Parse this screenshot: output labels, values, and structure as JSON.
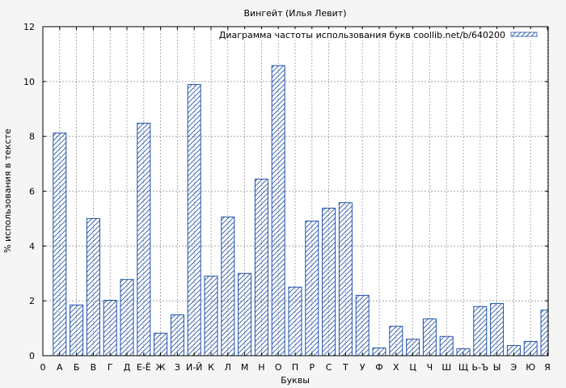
{
  "chart_data": {
    "type": "bar",
    "title": "Вингейт (Илья Левит)",
    "xlabel": "Буквы",
    "ylabel": "% использования в тексте",
    "ylim": [
      0,
      12
    ],
    "yticks": [
      0,
      2,
      4,
      6,
      8,
      10,
      12
    ],
    "x_start_label": "0",
    "categories": [
      "А",
      "Б",
      "В",
      "Г",
      "Д",
      "Е-Ё",
      "Ж",
      "З",
      "И-Й",
      "К",
      "Л",
      "М",
      "Н",
      "О",
      "П",
      "Р",
      "С",
      "Т",
      "У",
      "Ф",
      "Х",
      "Ц",
      "Ч",
      "Ш",
      "Щ",
      "Ь-Ъ",
      "Ы",
      "Э",
      "Ю",
      "Я"
    ],
    "series": [
      {
        "name": "Диаграмма частоты использования букв coollib.net/b/640200",
        "values": [
          8.12,
          1.85,
          5.0,
          2.02,
          2.78,
          8.48,
          0.82,
          1.49,
          9.89,
          2.9,
          5.06,
          3.0,
          6.44,
          10.58,
          2.5,
          4.91,
          5.38,
          5.58,
          2.2,
          0.28,
          1.07,
          0.6,
          1.34,
          0.7,
          0.25,
          1.79,
          1.9,
          0.37,
          0.52,
          1.66
        ]
      }
    ],
    "grid": true,
    "legend_position": "top-right",
    "colors": {
      "background": "#f5f5f5",
      "plot_background": "#ffffff",
      "bar_stroke": "#1f4fa8",
      "hatch": "#1f4fa8",
      "grid": "#999999",
      "axis": "#000000"
    }
  }
}
